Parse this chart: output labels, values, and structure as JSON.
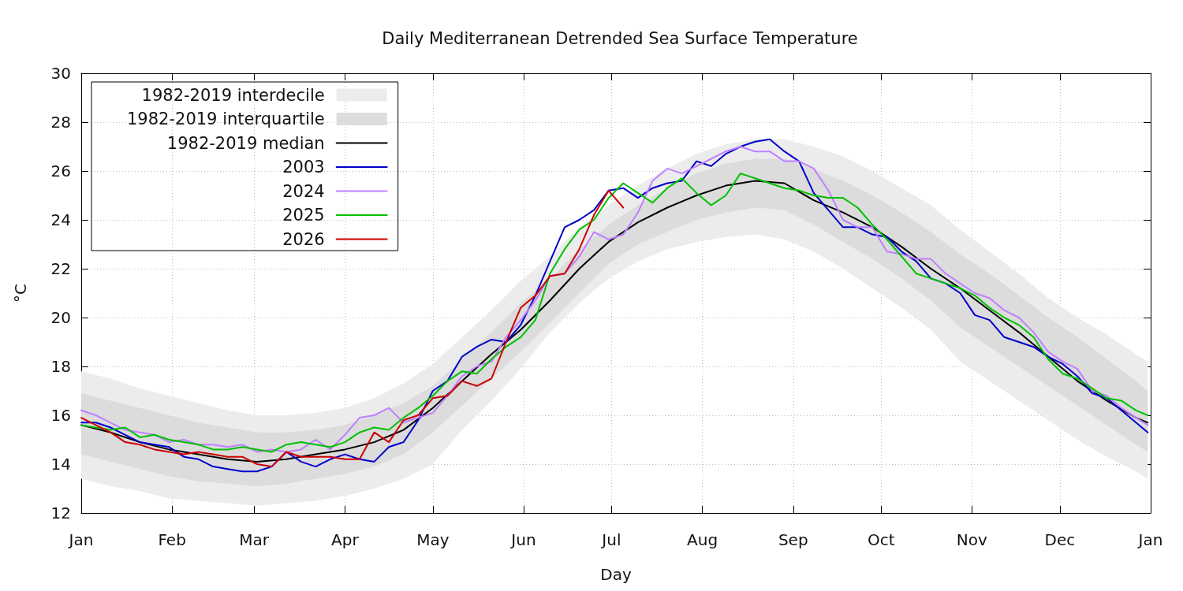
{
  "chart_data": {
    "type": "line",
    "title": "Daily Mediterranean Detrended Sea Surface Temperature",
    "xlabel": "Day",
    "ylabel": "°C",
    "x": [
      "2026-01-01",
      "2026-01-06",
      "2026-01-11",
      "2026-01-16",
      "2026-01-21",
      "2026-01-26",
      "2026-01-31",
      "2026-02-05",
      "2026-02-10",
      "2026-02-15",
      "2026-02-20",
      "2026-02-25",
      "2026-03-02",
      "2026-03-07",
      "2026-03-12",
      "2026-03-17",
      "2026-03-22",
      "2026-03-27",
      "2026-04-01",
      "2026-04-06",
      "2026-04-11",
      "2026-04-16",
      "2026-04-21",
      "2026-04-26",
      "2026-05-01",
      "2026-05-06",
      "2026-05-11",
      "2026-05-16",
      "2026-05-21",
      "2026-05-26",
      "2026-05-31",
      "2026-06-05",
      "2026-06-10",
      "2026-06-15",
      "2026-06-20",
      "2026-06-25",
      "2026-06-30",
      "2026-07-05",
      "2026-07-10",
      "2026-07-15",
      "2026-07-20",
      "2026-07-25",
      "2026-07-30",
      "2026-08-04",
      "2026-08-09",
      "2026-08-14",
      "2026-08-19",
      "2026-08-24",
      "2026-08-29",
      "2026-09-03",
      "2026-09-08",
      "2026-09-13",
      "2026-09-18",
      "2026-09-23",
      "2026-09-28",
      "2026-10-03",
      "2026-10-08",
      "2026-10-13",
      "2026-10-18",
      "2026-10-23",
      "2026-10-28",
      "2026-11-02",
      "2026-11-07",
      "2026-11-12",
      "2026-11-17",
      "2026-11-22",
      "2026-11-27",
      "2026-12-02",
      "2026-12-07",
      "2026-12-12",
      "2026-12-17",
      "2026-12-22",
      "2026-12-27",
      "2026-12-31"
    ],
    "xlim": [
      "2026-01-01",
      "2027-01-01"
    ],
    "xticks": [
      {
        "value": "2026-01-01",
        "label": "Jan"
      },
      {
        "value": "2026-02-01",
        "label": "Feb"
      },
      {
        "value": "2026-03-01",
        "label": "Mar"
      },
      {
        "value": "2026-04-01",
        "label": "Apr"
      },
      {
        "value": "2026-05-01",
        "label": "May"
      },
      {
        "value": "2026-06-01",
        "label": "Jun"
      },
      {
        "value": "2026-07-01",
        "label": "Jul"
      },
      {
        "value": "2026-08-01",
        "label": "Aug"
      },
      {
        "value": "2026-09-01",
        "label": "Sep"
      },
      {
        "value": "2026-10-01",
        "label": "Oct"
      },
      {
        "value": "2026-11-01",
        "label": "Nov"
      },
      {
        "value": "2026-12-01",
        "label": "Dec"
      },
      {
        "value": "2027-01-01",
        "label": "Jan"
      }
    ],
    "ylim": [
      12,
      30
    ],
    "yticks": [
      12,
      14,
      16,
      18,
      20,
      22,
      24,
      26,
      28,
      30
    ],
    "grid": true,
    "legend": "top left",
    "marker": "none",
    "series": [
      {
        "name": "1982-2019 interdecile",
        "color": "#ececec",
        "x": [
          "2026-01-01",
          "2026-01-11",
          "2026-01-21",
          "2026-01-31",
          "2026-02-10",
          "2026-02-20",
          "2026-03-02",
          "2026-03-12",
          "2026-03-22",
          "2026-04-01",
          "2026-04-11",
          "2026-04-21",
          "2026-05-01",
          "2026-05-11",
          "2026-05-21",
          "2026-05-31",
          "2026-06-10",
          "2026-06-20",
          "2026-06-30",
          "2026-07-10",
          "2026-07-20",
          "2026-07-30",
          "2026-08-09",
          "2026-08-19",
          "2026-08-29",
          "2026-09-08",
          "2026-09-18",
          "2026-09-28",
          "2026-10-08",
          "2026-10-18",
          "2026-10-28",
          "2026-11-07",
          "2026-11-17",
          "2026-11-27",
          "2026-12-07",
          "2026-12-17",
          "2026-12-27",
          "2026-12-31"
        ],
        "values": [
          null,
          null,
          null,
          null,
          null,
          null,
          null,
          null,
          null,
          null,
          null,
          null,
          null,
          null,
          null,
          null,
          null,
          null,
          null,
          null,
          null,
          null,
          null,
          null,
          null,
          null,
          null,
          null,
          null,
          null,
          null,
          null,
          null,
          null,
          null,
          null,
          null,
          null
        ],
        "lower": [
          13.4,
          13.1,
          12.9,
          12.6,
          12.5,
          12.4,
          12.3,
          12.4,
          12.5,
          12.7,
          13.0,
          13.4,
          14.0,
          15.4,
          16.6,
          17.9,
          19.4,
          20.6,
          21.6,
          22.3,
          22.8,
          23.1,
          23.3,
          23.4,
          23.2,
          22.7,
          22.0,
          21.2,
          20.4,
          19.5,
          18.2,
          17.4,
          16.6,
          15.8,
          15.0,
          14.3,
          13.7,
          13.4
        ],
        "upper": [
          17.8,
          17.5,
          17.1,
          16.8,
          16.5,
          16.2,
          16.0,
          16.0,
          16.1,
          16.3,
          16.7,
          17.3,
          18.1,
          19.2,
          20.3,
          21.5,
          22.5,
          23.7,
          24.6,
          25.4,
          26.1,
          26.7,
          27.1,
          27.3,
          27.3,
          27.0,
          26.6,
          26.0,
          25.3,
          24.6,
          23.6,
          22.7,
          21.8,
          20.8,
          20.0,
          19.3,
          18.5,
          18.2
        ]
      },
      {
        "name": "1982-2019 interquartile",
        "color": "#dcdcdc",
        "x": [
          "2026-01-01",
          "2026-01-11",
          "2026-01-21",
          "2026-01-31",
          "2026-02-10",
          "2026-02-20",
          "2026-03-02",
          "2026-03-12",
          "2026-03-22",
          "2026-04-01",
          "2026-04-11",
          "2026-04-21",
          "2026-05-01",
          "2026-05-11",
          "2026-05-21",
          "2026-05-31",
          "2026-06-10",
          "2026-06-20",
          "2026-06-30",
          "2026-07-10",
          "2026-07-20",
          "2026-07-30",
          "2026-08-09",
          "2026-08-19",
          "2026-08-29",
          "2026-09-08",
          "2026-09-18",
          "2026-09-28",
          "2026-10-08",
          "2026-10-18",
          "2026-10-28",
          "2026-11-07",
          "2026-11-17",
          "2026-11-27",
          "2026-12-07",
          "2026-12-17",
          "2026-12-27",
          "2026-12-31"
        ],
        "values": [
          null,
          null,
          null,
          null,
          null,
          null,
          null,
          null,
          null,
          null,
          null,
          null,
          null,
          null,
          null,
          null,
          null,
          null,
          null,
          null,
          null,
          null,
          null,
          null,
          null,
          null,
          null,
          null,
          null,
          null,
          null,
          null,
          null,
          null,
          null,
          null,
          null,
          null
        ],
        "lower": [
          14.4,
          14.1,
          13.8,
          13.5,
          13.3,
          13.2,
          13.1,
          13.2,
          13.4,
          13.6,
          13.9,
          14.4,
          15.3,
          16.4,
          17.5,
          18.6,
          19.8,
          21.0,
          22.2,
          23.0,
          23.5,
          24.0,
          24.3,
          24.5,
          24.4,
          23.8,
          23.1,
          22.4,
          21.6,
          20.7,
          19.6,
          18.8,
          18.0,
          17.2,
          16.4,
          15.6,
          14.8,
          14.5
        ],
        "upper": [
          16.9,
          16.6,
          16.3,
          16.0,
          15.7,
          15.5,
          15.3,
          15.3,
          15.4,
          15.6,
          16.0,
          16.5,
          17.2,
          18.3,
          19.4,
          20.6,
          21.6,
          22.8,
          23.8,
          24.6,
          25.3,
          25.9,
          26.3,
          26.5,
          26.5,
          26.1,
          25.6,
          25.0,
          24.3,
          23.5,
          22.6,
          21.8,
          20.9,
          20.0,
          19.2,
          18.3,
          17.4,
          17.0
        ]
      },
      {
        "name": "1982-2019 median",
        "color": "#000000",
        "x": [
          "2026-01-01",
          "2026-01-11",
          "2026-01-21",
          "2026-01-31",
          "2026-02-10",
          "2026-02-20",
          "2026-03-02",
          "2026-03-12",
          "2026-03-22",
          "2026-04-01",
          "2026-04-11",
          "2026-04-21",
          "2026-05-01",
          "2026-05-11",
          "2026-05-21",
          "2026-05-31",
          "2026-06-10",
          "2026-06-20",
          "2026-06-30",
          "2026-07-10",
          "2026-07-20",
          "2026-07-30",
          "2026-08-09",
          "2026-08-19",
          "2026-08-29",
          "2026-09-08",
          "2026-09-18",
          "2026-09-28",
          "2026-10-08",
          "2026-10-18",
          "2026-10-28",
          "2026-11-07",
          "2026-11-17",
          "2026-11-27",
          "2026-12-07",
          "2026-12-17",
          "2026-12-27",
          "2026-12-31"
        ],
        "values": [
          15.6,
          15.3,
          14.9,
          14.6,
          14.4,
          14.2,
          14.1,
          14.2,
          14.4,
          14.6,
          14.9,
          15.4,
          16.3,
          17.4,
          18.5,
          19.5,
          20.7,
          22.0,
          23.1,
          23.9,
          24.5,
          25.0,
          25.4,
          25.6,
          25.5,
          24.8,
          24.3,
          23.7,
          22.9,
          22.0,
          21.2,
          20.3,
          19.4,
          18.4,
          17.4,
          16.6,
          15.9,
          15.7
        ]
      },
      {
        "name": "2003",
        "color": "#0000cc",
        "values": [
          15.7,
          15.7,
          15.5,
          15.2,
          14.9,
          14.8,
          14.7,
          14.3,
          14.2,
          13.9,
          13.8,
          13.7,
          13.7,
          13.9,
          14.5,
          14.1,
          13.9,
          14.2,
          14.4,
          14.2,
          14.1,
          14.7,
          14.9,
          15.8,
          17.0,
          17.4,
          18.4,
          18.8,
          19.1,
          19.0,
          19.7,
          20.9,
          22.3,
          23.7,
          24.0,
          24.4,
          25.2,
          25.3,
          24.9,
          25.3,
          25.5,
          25.6,
          26.4,
          26.2,
          26.7,
          27.0,
          27.2,
          27.3,
          26.8,
          26.4,
          25.1,
          24.4,
          23.7,
          23.7,
          23.4,
          23.3,
          22.7,
          22.3,
          21.6,
          21.4,
          21.0,
          20.1,
          19.9,
          19.2,
          19.0,
          18.8,
          18.4,
          18.1,
          17.6,
          16.9,
          16.7,
          16.2,
          15.7,
          15.3
        ]
      },
      {
        "name": "2024",
        "color": "#bf80ff",
        "values": [
          16.2,
          16.0,
          15.7,
          15.4,
          15.3,
          15.2,
          14.9,
          15.0,
          14.8,
          14.8,
          14.7,
          14.8,
          14.5,
          14.6,
          14.5,
          14.6,
          15.0,
          14.6,
          15.2,
          15.9,
          16.0,
          16.3,
          15.7,
          15.9,
          16.1,
          16.8,
          17.6,
          18.0,
          18.2,
          19.2,
          19.9,
          20.7,
          21.7,
          21.8,
          22.5,
          23.5,
          23.2,
          23.4,
          24.3,
          25.6,
          26.1,
          25.9,
          26.2,
          26.5,
          26.8,
          27.0,
          26.8,
          26.8,
          26.4,
          26.4,
          26.1,
          25.2,
          24.0,
          23.7,
          23.7,
          22.7,
          22.6,
          22.4,
          22.4,
          21.8,
          21.4,
          21.0,
          20.8,
          20.3,
          20.0,
          19.4,
          18.6,
          18.2,
          17.9,
          17.0,
          16.8,
          16.3,
          15.9,
          15.6
        ]
      },
      {
        "name": "2025",
        "color": "#00c000",
        "values": [
          15.6,
          15.5,
          15.4,
          15.5,
          15.1,
          15.2,
          15.0,
          14.9,
          14.8,
          14.6,
          14.6,
          14.7,
          14.6,
          14.5,
          14.8,
          14.9,
          14.8,
          14.7,
          14.9,
          15.3,
          15.5,
          15.4,
          15.9,
          16.3,
          16.8,
          17.4,
          17.8,
          17.7,
          18.3,
          18.8,
          19.2,
          19.9,
          21.8,
          22.8,
          23.6,
          24.0,
          24.9,
          25.5,
          25.1,
          24.7,
          25.3,
          25.7,
          25.1,
          24.6,
          25.0,
          25.9,
          25.7,
          25.5,
          25.3,
          25.2,
          25.0,
          24.9,
          24.9,
          24.5,
          23.8,
          23.2,
          22.5,
          21.8,
          21.6,
          21.4,
          21.2,
          20.9,
          20.4,
          20.0,
          19.7,
          19.2,
          18.3,
          17.7,
          17.5,
          17.1,
          16.7,
          16.6,
          16.2,
          16.0
        ]
      },
      {
        "name": "2026",
        "color": "#cc0000",
        "x": [
          "2026-01-01",
          "2026-01-06",
          "2026-01-11",
          "2026-01-16",
          "2026-01-21",
          "2026-01-26",
          "2026-01-31",
          "2026-02-05",
          "2026-02-10",
          "2026-02-15",
          "2026-02-20",
          "2026-02-25",
          "2026-03-02",
          "2026-03-07",
          "2026-03-12",
          "2026-03-17",
          "2026-03-22",
          "2026-03-27",
          "2026-04-01",
          "2026-04-06",
          "2026-04-11",
          "2026-04-16",
          "2026-04-21",
          "2026-04-26",
          "2026-05-01",
          "2026-05-06",
          "2026-05-11",
          "2026-05-16",
          "2026-05-21",
          "2026-05-26",
          "2026-05-31",
          "2026-06-05",
          "2026-06-10",
          "2026-06-15",
          "2026-06-20",
          "2026-06-25",
          "2026-06-30",
          "2026-07-05"
        ],
        "values": [
          15.9,
          15.6,
          15.3,
          14.9,
          14.8,
          14.6,
          14.5,
          14.4,
          14.5,
          14.4,
          14.3,
          14.3,
          14.0,
          13.9,
          14.5,
          14.3,
          14.3,
          14.3,
          14.2,
          14.2,
          15.3,
          14.9,
          15.8,
          16.0,
          16.7,
          16.8,
          17.4,
          17.2,
          17.5,
          19.0,
          20.4,
          20.9,
          21.7,
          21.8,
          22.8,
          24.2,
          25.2,
          24.5
        ]
      }
    ]
  }
}
